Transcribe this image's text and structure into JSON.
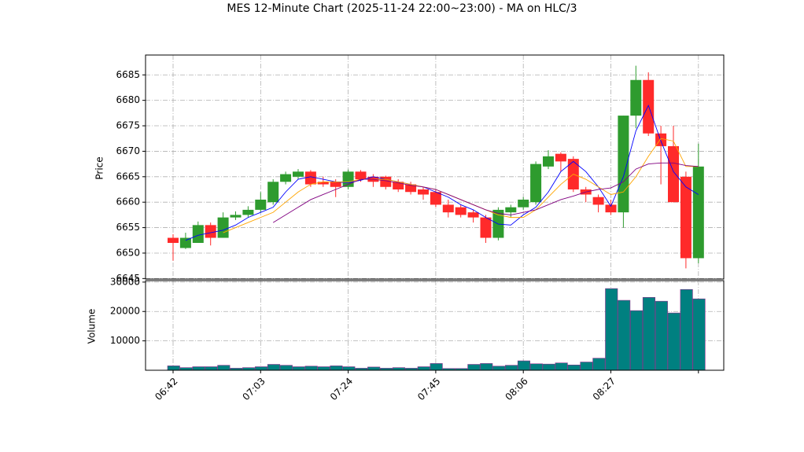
{
  "chart_data": [
    {
      "type": "candlestick",
      "title": "MES 12-Minute Chart (2025-11-24 22:00~23:00) - MA on HLC/3",
      "ylabel": "Price",
      "open": [
        6653,
        6651,
        6652,
        6655.5,
        6653,
        6657,
        6657.5,
        6658.5,
        6660,
        6664,
        6665,
        6666,
        6664,
        6664,
        6663,
        6666,
        6665,
        6665,
        6664,
        6663.5,
        6662.5,
        6662,
        6659.5,
        6659,
        6658,
        6657,
        6653,
        6658,
        6659,
        6660,
        6667,
        6669.5,
        6668.5,
        6662.5,
        6661,
        6659.5,
        6658,
        6677,
        6684,
        6673.5,
        6671,
        6665,
        6649
      ],
      "high": [
        6653.7,
        6654,
        6656.2,
        6656,
        6658,
        6658.2,
        6659.2,
        6662,
        6664.5,
        6666,
        6666.5,
        6666.3,
        6665,
        6664.5,
        6666.4,
        6666.3,
        6665.5,
        6665.2,
        6664.5,
        6664,
        6663,
        6662.5,
        6660.5,
        6659.5,
        6658.5,
        6657.5,
        6659,
        6659.5,
        6661,
        6668,
        6670.2,
        6669.8,
        6669,
        6663,
        6661.5,
        6660.5,
        6677,
        6686.8,
        6685.5,
        6675,
        6675,
        6666,
        6671.5
      ],
      "low": [
        6648.5,
        6650.8,
        6652,
        6651.5,
        6653,
        6656.5,
        6657,
        6658,
        6659.5,
        6663.5,
        6664.5,
        6663,
        6663,
        6661,
        6662.5,
        6664,
        6663,
        6662.5,
        6662,
        6661.5,
        6660.5,
        6659,
        6657,
        6657,
        6656,
        6652,
        6652.5,
        6657,
        6658.5,
        6659.5,
        6666.5,
        6666,
        6662,
        6660,
        6658,
        6657.5,
        6655,
        6674.5,
        6673,
        6663.5,
        6660,
        6647,
        6648
      ],
      "close": [
        6652,
        6653,
        6655.5,
        6653,
        6657,
        6657.5,
        6658.5,
        6660.5,
        6664,
        6665.5,
        6666,
        6663.5,
        6663.5,
        6663,
        6666,
        6664.5,
        6664,
        6663,
        6662.5,
        6662,
        6661.5,
        6659.5,
        6658,
        6657.5,
        6657,
        6653,
        6658.5,
        6659,
        6660.5,
        6667.5,
        6669,
        6668,
        6662.5,
        6661.5,
        6659.5,
        6658,
        6677,
        6684,
        6673.5,
        6671,
        6660,
        6649,
        6667
      ],
      "up_color": "#2e9b2e",
      "down_color": "#ff2a2a",
      "series": [
        {
          "color": "#0000ff",
          "values": [
            null,
            6652.5,
            6653.5,
            6654,
            6654.5,
            6655.5,
            6657,
            6658,
            6659,
            6662,
            6664.5,
            6665,
            6664.5,
            6664,
            6663.8,
            6664.3,
            6665,
            6664.5,
            6664,
            6663.5,
            6663,
            6662,
            6661,
            6659.5,
            6658.5,
            6657,
            6655.7,
            6655.5,
            6657.5,
            6659,
            6662,
            6666,
            6668,
            6666,
            6663,
            6659.2,
            6665,
            6674,
            6679,
            6672,
            6666,
            6663,
            6661.5
          ]
        },
        {
          "color": "#ffa500",
          "values": [
            null,
            null,
            null,
            null,
            6654,
            6655,
            6656,
            6657,
            6658,
            6660,
            6662,
            6663.5,
            6664,
            6664,
            6664,
            6664.5,
            6664.5,
            6664.5,
            6664,
            6663.5,
            6663,
            6662.5,
            6661.5,
            6660.5,
            6659.5,
            6658.5,
            6657.5,
            6657,
            6657,
            6658.5,
            6661,
            6663.5,
            6665.5,
            6664.5,
            6663,
            6661.5,
            6662,
            6665,
            6669,
            6672.5,
            6672,
            6667,
            6667
          ]
        },
        {
          "color": "#800080",
          "values": [
            null,
            null,
            null,
            null,
            null,
            null,
            null,
            null,
            6656,
            6657.5,
            6659,
            6660.5,
            6661.5,
            6662.5,
            6663.5,
            6664.5,
            6664.5,
            6664.2,
            6663.8,
            6663.3,
            6663,
            6662.5,
            6661.5,
            6660.5,
            6659.5,
            6658.5,
            6657.8,
            6657.5,
            6658,
            6658.5,
            6659.5,
            6660.5,
            6661.2,
            6662,
            6662.5,
            6662.8,
            6664,
            6666.5,
            6667.5,
            6667.7,
            6667.7,
            6667.2,
            6667
          ]
        }
      ],
      "ylim": [
        6644.9,
        6688.9
      ],
      "yticks": [
        6645,
        6650,
        6655,
        6660,
        6665,
        6670,
        6675,
        6680,
        6685
      ],
      "grid": true
    },
    {
      "type": "bar",
      "ylabel": "Volume",
      "categories": [
        "06:42",
        null,
        null,
        null,
        null,
        null,
        null,
        "07:03",
        null,
        null,
        null,
        null,
        null,
        null,
        "07:24",
        null,
        null,
        null,
        null,
        null,
        null,
        "07:45",
        null,
        null,
        null,
        null,
        null,
        null,
        "08:06",
        null,
        null,
        null,
        null,
        null,
        null,
        "08:27",
        null,
        null,
        null,
        null,
        null,
        null,
        null
      ],
      "values": [
        1500,
        900,
        1200,
        1200,
        1700,
        700,
        900,
        1200,
        2000,
        1700,
        1200,
        1400,
        1200,
        1500,
        1200,
        700,
        1100,
        700,
        900,
        700,
        1200,
        2300,
        600,
        600,
        2000,
        2300,
        1400,
        1700,
        3200,
        2200,
        2100,
        2500,
        1800,
        2800,
        4100,
        27800,
        23800,
        20300,
        24800,
        23500,
        19500,
        27500,
        24300
      ],
      "color": "#008080",
      "edge_color": "#8b2f8b",
      "ylim": [
        0,
        30500
      ],
      "yticks": [
        10000,
        20000,
        30000
      ],
      "grid": true
    }
  ]
}
